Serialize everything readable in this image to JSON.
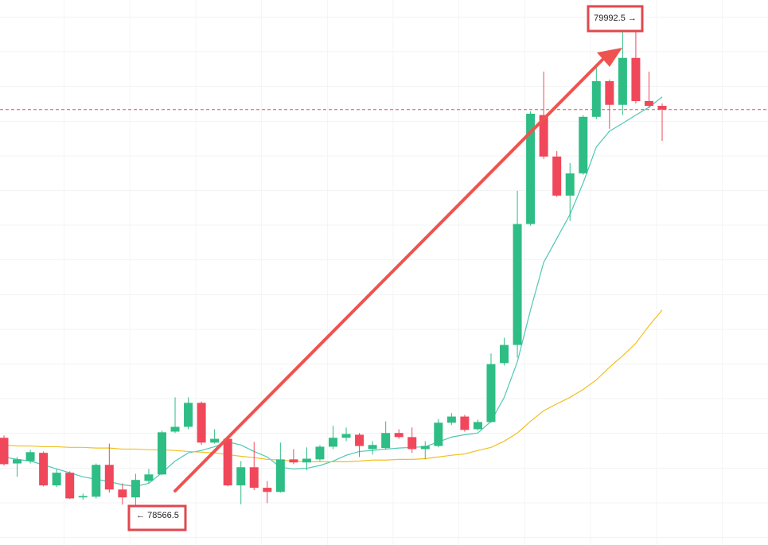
{
  "chart_data": {
    "type": "candlestick",
    "ylim": [
      78453,
      80044
    ],
    "up_color": "#2ebd85",
    "down_color": "#f0475a",
    "open": [
      78766,
      78691,
      78698,
      78722,
      78627,
      78664,
      78592,
      78594,
      78687,
      78615,
      78592,
      78640,
      78659,
      78784,
      78798,
      78868,
      78752,
      78763,
      78627,
      78680,
      78620,
      78608,
      78703,
      78694,
      78703,
      78740,
      78766,
      78775,
      78733,
      78736,
      78780,
      78768,
      78733,
      78742,
      78810,
      78828,
      78791,
      78812,
      78984,
      79037,
      79390,
      79708,
      79587,
      79473,
      79538,
      79703,
      79807,
      79738,
      79875,
      79749,
      79735
    ],
    "high": [
      78773,
      78710,
      78731,
      78726,
      78675,
      78668,
      78603,
      78691,
      78749,
      78633,
      78661,
      78675,
      78787,
      78884,
      78884,
      78872,
      78791,
      78768,
      78698,
      78754,
      78640,
      78752,
      78733,
      78738,
      78745,
      78801,
      78796,
      78780,
      78756,
      78814,
      78791,
      78796,
      78756,
      78821,
      78838,
      78833,
      78819,
      79012,
      79058,
      79487,
      79719,
      79835,
      79603,
      79568,
      79708,
      79847,
      79812,
      79974,
      79992.5,
      79835,
      79742
    ],
    "low": [
      78685,
      78652,
      78691,
      78624,
      78622,
      78587,
      78585,
      78589,
      78606,
      78571,
      78566.5,
      78633,
      78657,
      78780,
      78791,
      78745,
      78749,
      78624,
      78572,
      78613,
      78575,
      78606,
      78689,
      78671,
      78698,
      78733,
      78756,
      78710,
      78717,
      78731,
      78763,
      78722,
      78703,
      78738,
      78803,
      78784,
      78787,
      78810,
      78977,
      79000,
      79385,
      79580,
      79469,
      79399,
      79534,
      79696,
      79668,
      79708,
      79742,
      79728,
      79633
    ],
    "close": [
      78689,
      78703,
      78724,
      78627,
      78664,
      78589,
      78596,
      78687,
      78615,
      78592,
      78643,
      78659,
      78782,
      78798,
      78868,
      78752,
      78763,
      78627,
      78680,
      78620,
      78608,
      78703,
      78694,
      78705,
      78740,
      78766,
      78777,
      78742,
      78745,
      78780,
      78768,
      78733,
      78742,
      78810,
      78828,
      78789,
      78812,
      78981,
      79037,
      79390,
      79712,
      79587,
      79473,
      79538,
      79703,
      79807,
      79738,
      79875,
      79749,
      79735,
      79724
    ],
    "moving_averages": [
      {
        "color": "#4fc7b4",
        "values": [
          78710,
          78703,
          78698,
          78687,
          78675,
          78664,
          78652,
          78645,
          78638,
          78629,
          78624,
          78633,
          78664,
          78698,
          78722,
          78729,
          78740,
          78754,
          78745,
          78726,
          78710,
          78680,
          78675,
          78677,
          78685,
          78698,
          78715,
          78726,
          78729,
          78733,
          78736,
          78738,
          78740,
          78754,
          78768,
          78775,
          78780,
          78814,
          78884,
          78988,
          79139,
          79278,
          79348,
          79418,
          79510,
          79615,
          79661,
          79684,
          79708,
          79731,
          79761
        ]
      },
      {
        "color": "#f0c020",
        "values": [
          78745,
          78742,
          78742,
          78740,
          78740,
          78738,
          78738,
          78736,
          78736,
          78733,
          78733,
          78731,
          78731,
          78729,
          78726,
          78724,
          78722,
          78717,
          78712,
          78708,
          78703,
          78701,
          78698,
          78696,
          78696,
          78696,
          78696,
          78698,
          78701,
          78701,
          78703,
          78703,
          78705,
          78710,
          78715,
          78719,
          78729,
          78738,
          78756,
          78780,
          78814,
          78845,
          78865,
          78884,
          78907,
          78935,
          78972,
          79005,
          79042,
          79093,
          79139
        ]
      }
    ],
    "last_price_line": true,
    "high_label": "79992.5 →",
    "low_label": "← 78566.5"
  }
}
